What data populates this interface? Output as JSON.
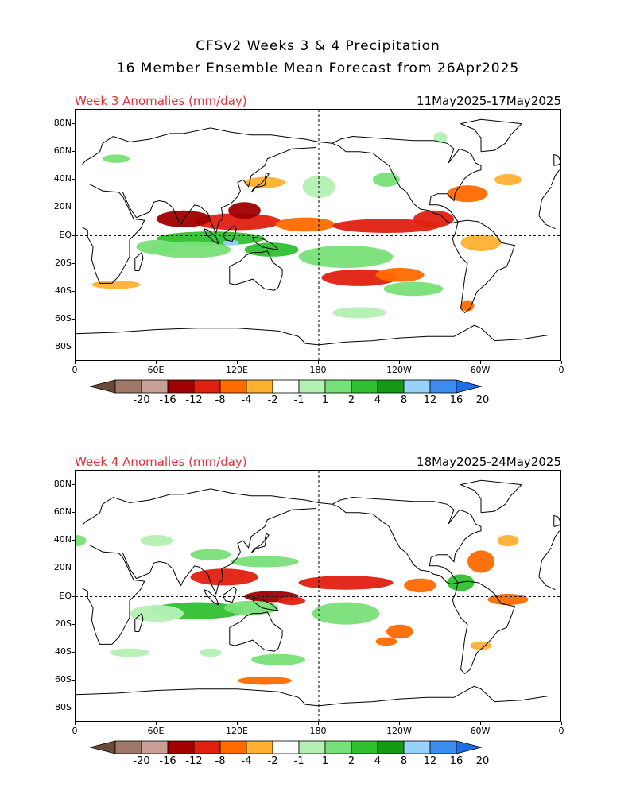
{
  "titles": {
    "line1": "CFSv2 Weeks 3 & 4 Precipitation",
    "line2": "16 Member Ensemble Mean Forecast from 26Apr2025"
  },
  "panels": [
    {
      "week_label": "Week 3 Anomalies (mm/day)",
      "date_range": "11May2025-17May2025"
    },
    {
      "week_label": "Week 4 Anomalies (mm/day)",
      "date_range": "18May2025-24May2025"
    }
  ],
  "lat_labels": [
    "80N",
    "60N",
    "40N",
    "20N",
    "EQ",
    "20S",
    "40S",
    "60S",
    "80S"
  ],
  "lon_labels": [
    "0",
    "60E",
    "120E",
    "180",
    "120W",
    "60W",
    "0"
  ],
  "colorbar": {
    "labels": [
      "-20",
      "-16",
      "-12",
      "-8",
      "-4",
      "-2",
      "-1",
      "1",
      "2",
      "4",
      "8",
      "12",
      "16",
      "20"
    ],
    "colors": [
      "#6b4a3a",
      "#a07868",
      "#c8a098",
      "#a00000",
      "#e02010",
      "#ff6a00",
      "#ffb030",
      "#ffffff",
      "#b4f0b4",
      "#78e078",
      "#32c032",
      "#149a14",
      "#96d2fa",
      "#3c8cf0",
      "#1e6ee6"
    ]
  }
}
